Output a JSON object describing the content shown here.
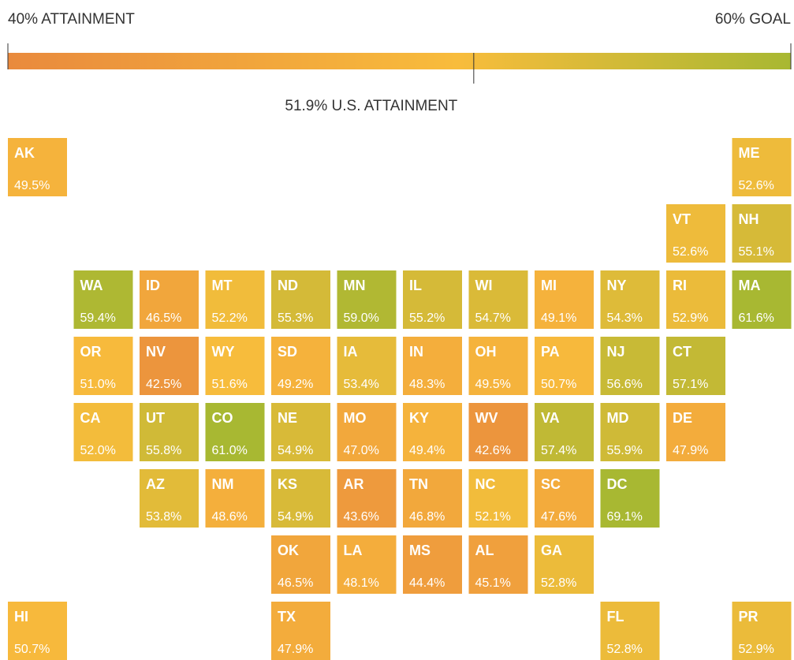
{
  "scale": {
    "min_label": "40% ATTAINMENT",
    "max_label": "60% GOAL",
    "min": 40,
    "max": 60,
    "us_value": 51.9,
    "us_label": "51.9% U.S. ATTAINMENT",
    "colors": [
      "#e98a3d",
      "#f8bc3c",
      "#a8b832"
    ]
  },
  "tiles": [
    {
      "state": "AK",
      "value": 49.5,
      "value_label": "49.5%"
    },
    {
      "state": "ME",
      "value": 52.6,
      "value_label": "52.6%"
    },
    {
      "state": "VT",
      "value": 52.6,
      "value_label": "52.6%"
    },
    {
      "state": "NH",
      "value": 55.1,
      "value_label": "55.1%"
    },
    {
      "state": "WA",
      "value": 59.4,
      "value_label": "59.4%"
    },
    {
      "state": "ID",
      "value": 46.5,
      "value_label": "46.5%"
    },
    {
      "state": "MT",
      "value": 52.2,
      "value_label": "52.2%"
    },
    {
      "state": "ND",
      "value": 55.3,
      "value_label": "55.3%"
    },
    {
      "state": "MN",
      "value": 59.0,
      "value_label": "59.0%"
    },
    {
      "state": "IL",
      "value": 55.2,
      "value_label": "55.2%"
    },
    {
      "state": "WI",
      "value": 54.7,
      "value_label": "54.7%"
    },
    {
      "state": "MI",
      "value": 49.1,
      "value_label": "49.1%"
    },
    {
      "state": "NY",
      "value": 54.3,
      "value_label": "54.3%"
    },
    {
      "state": "RI",
      "value": 52.9,
      "value_label": "52.9%"
    },
    {
      "state": "MA",
      "value": 61.6,
      "value_label": "61.6%"
    },
    {
      "state": "OR",
      "value": 51.0,
      "value_label": "51.0%"
    },
    {
      "state": "NV",
      "value": 42.5,
      "value_label": "42.5%"
    },
    {
      "state": "WY",
      "value": 51.6,
      "value_label": "51.6%"
    },
    {
      "state": "SD",
      "value": 49.2,
      "value_label": "49.2%"
    },
    {
      "state": "IA",
      "value": 53.4,
      "value_label": "53.4%"
    },
    {
      "state": "IN",
      "value": 48.3,
      "value_label": "48.3%"
    },
    {
      "state": "OH",
      "value": 49.5,
      "value_label": "49.5%"
    },
    {
      "state": "PA",
      "value": 50.7,
      "value_label": "50.7%"
    },
    {
      "state": "NJ",
      "value": 56.6,
      "value_label": "56.6%"
    },
    {
      "state": "CT",
      "value": 57.1,
      "value_label": "57.1%"
    },
    {
      "state": "CA",
      "value": 52.0,
      "value_label": "52.0%"
    },
    {
      "state": "UT",
      "value": 55.8,
      "value_label": "55.8%"
    },
    {
      "state": "CO",
      "value": 61.0,
      "value_label": "61.0%"
    },
    {
      "state": "NE",
      "value": 54.9,
      "value_label": "54.9%"
    },
    {
      "state": "MO",
      "value": 47.0,
      "value_label": "47.0%"
    },
    {
      "state": "KY",
      "value": 49.4,
      "value_label": "49.4%"
    },
    {
      "state": "WV",
      "value": 42.6,
      "value_label": "42.6%"
    },
    {
      "state": "VA",
      "value": 57.4,
      "value_label": "57.4%"
    },
    {
      "state": "MD",
      "value": 55.9,
      "value_label": "55.9%"
    },
    {
      "state": "DE",
      "value": 47.9,
      "value_label": "47.9%"
    },
    {
      "state": "AZ",
      "value": 53.8,
      "value_label": "53.8%"
    },
    {
      "state": "NM",
      "value": 48.6,
      "value_label": "48.6%"
    },
    {
      "state": "KS",
      "value": 54.9,
      "value_label": "54.9%"
    },
    {
      "state": "AR",
      "value": 43.6,
      "value_label": "43.6%"
    },
    {
      "state": "TN",
      "value": 46.8,
      "value_label": "46.8%"
    },
    {
      "state": "NC",
      "value": 52.1,
      "value_label": "52.1%"
    },
    {
      "state": "SC",
      "value": 47.6,
      "value_label": "47.6%"
    },
    {
      "state": "DC",
      "value": 69.1,
      "value_label": "69.1%"
    },
    {
      "state": "OK",
      "value": 46.5,
      "value_label": "46.5%"
    },
    {
      "state": "LA",
      "value": 48.1,
      "value_label": "48.1%"
    },
    {
      "state": "MS",
      "value": 44.4,
      "value_label": "44.4%"
    },
    {
      "state": "AL",
      "value": 45.1,
      "value_label": "45.1%"
    },
    {
      "state": "GA",
      "value": 52.8,
      "value_label": "52.8%"
    },
    {
      "state": "HI",
      "value": 50.7,
      "value_label": "50.7%"
    },
    {
      "state": "TX",
      "value": 47.9,
      "value_label": "47.9%"
    },
    {
      "state": "FL",
      "value": 52.8,
      "value_label": "52.8%"
    },
    {
      "state": "PR",
      "value": 52.9,
      "value_label": "52.9%"
    }
  ]
}
